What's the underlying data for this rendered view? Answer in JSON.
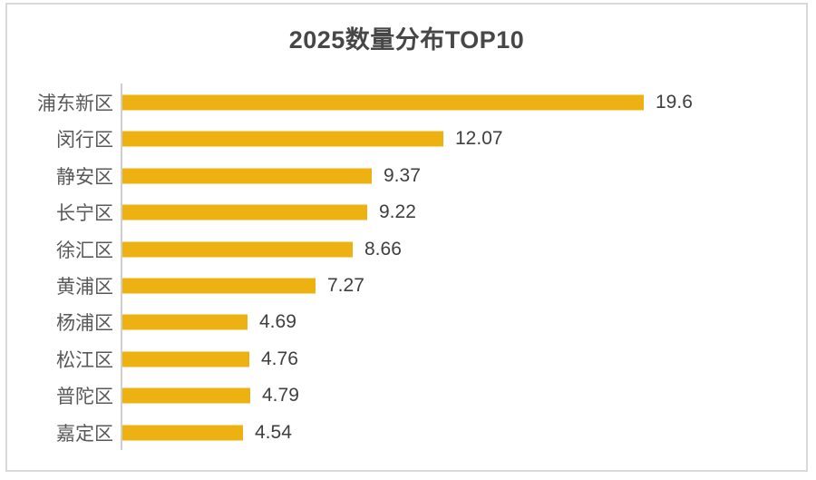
{
  "title": "2025数量分布TOP10",
  "colors": {
    "bar": "#EDB211",
    "title_text": "#474747",
    "category_text": "#595959",
    "value_text": "#3F3F3F",
    "axis_line": "#D0CECE",
    "frame_border": "#D9D9D9",
    "background": "#FFFFFF"
  },
  "chart_data": {
    "type": "bar",
    "orientation": "horizontal",
    "title": "2025数量分布TOP10",
    "categories": [
      "浦东新区",
      "闵行区",
      "静安区",
      "长宁区",
      "徐汇区",
      "黄浦区",
      "杨浦区",
      "松江区",
      "普陀区",
      "嘉定区"
    ],
    "values": [
      19.6,
      12.07,
      9.37,
      9.22,
      8.66,
      7.27,
      4.69,
      4.76,
      4.79,
      4.54
    ],
    "value_labels": [
      "19.6",
      "12.07",
      "9.37",
      "9.22",
      "8.66",
      "7.27",
      "4.69",
      "4.76",
      "4.79",
      "4.54"
    ],
    "xlim": [
      0,
      19.6
    ],
    "grid": false,
    "legend": false,
    "value_labels_shown": true,
    "bar_color": "#EDB211"
  }
}
